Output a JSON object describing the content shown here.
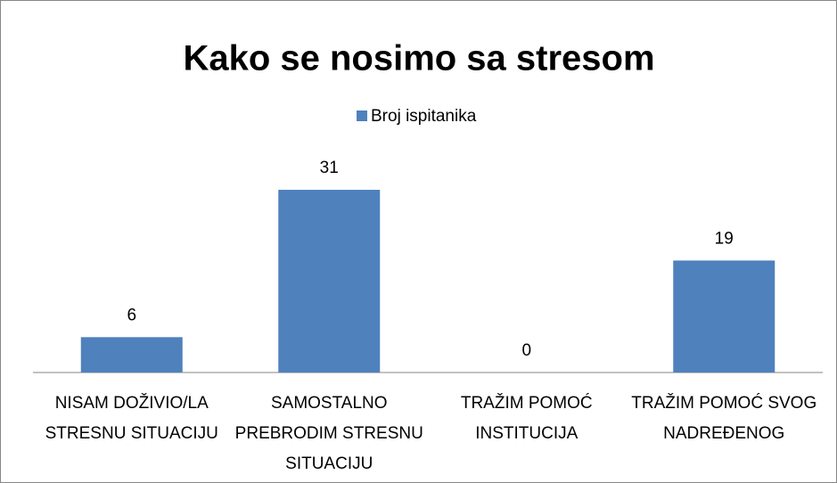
{
  "chart_data": {
    "type": "bar",
    "title": "Kako se nosimo sa stresom",
    "categories": [
      "NISAM DOŽIVIO/LA STRESNU SITUACIJU",
      "SAMOSTALNO PREBRODIM STRESNU SITUACIJU",
      "TRAŽIM POMOĆ INSTITUCIJA",
      "TRAŽIM POMOĆ SVOG NADREĐENOG"
    ],
    "series": [
      {
        "name": "Broj ispitanika",
        "color": "#4f81bd",
        "values": [
          6,
          31,
          0,
          19
        ]
      }
    ]
  }
}
